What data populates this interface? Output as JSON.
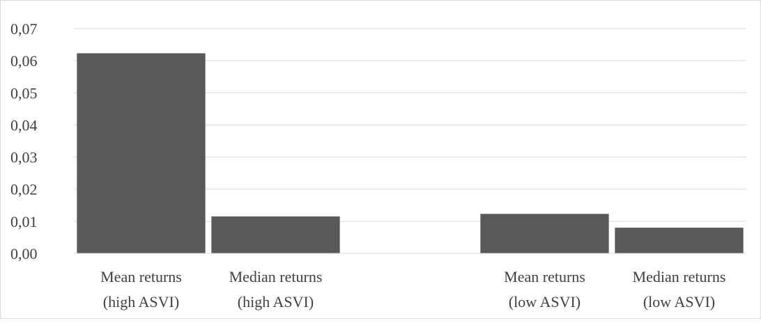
{
  "chart_data": {
    "type": "bar",
    "categories": [
      [
        "Mean returns",
        "(high ASVI)"
      ],
      [
        "Median returns",
        "(high ASVI)"
      ],
      [
        "",
        ""
      ],
      [
        "Mean returns",
        "(low ASVI)"
      ],
      [
        "Median returns",
        "(low ASVI)"
      ]
    ],
    "values": [
      0.0623,
      0.0115,
      null,
      0.0123,
      0.008
    ],
    "ylim": [
      0,
      0.07
    ],
    "yticks": [
      "0,00",
      "0,01",
      "0,02",
      "0,03",
      "0,04",
      "0,05",
      "0,06",
      "0,07"
    ],
    "title": "",
    "xlabel": "",
    "ylabel": "",
    "grid": true,
    "legend": "none",
    "colors": {
      "bar": "#595959",
      "grid": "#d9d9d9",
      "text": "#404040",
      "axis": "#d9d9d9"
    }
  }
}
